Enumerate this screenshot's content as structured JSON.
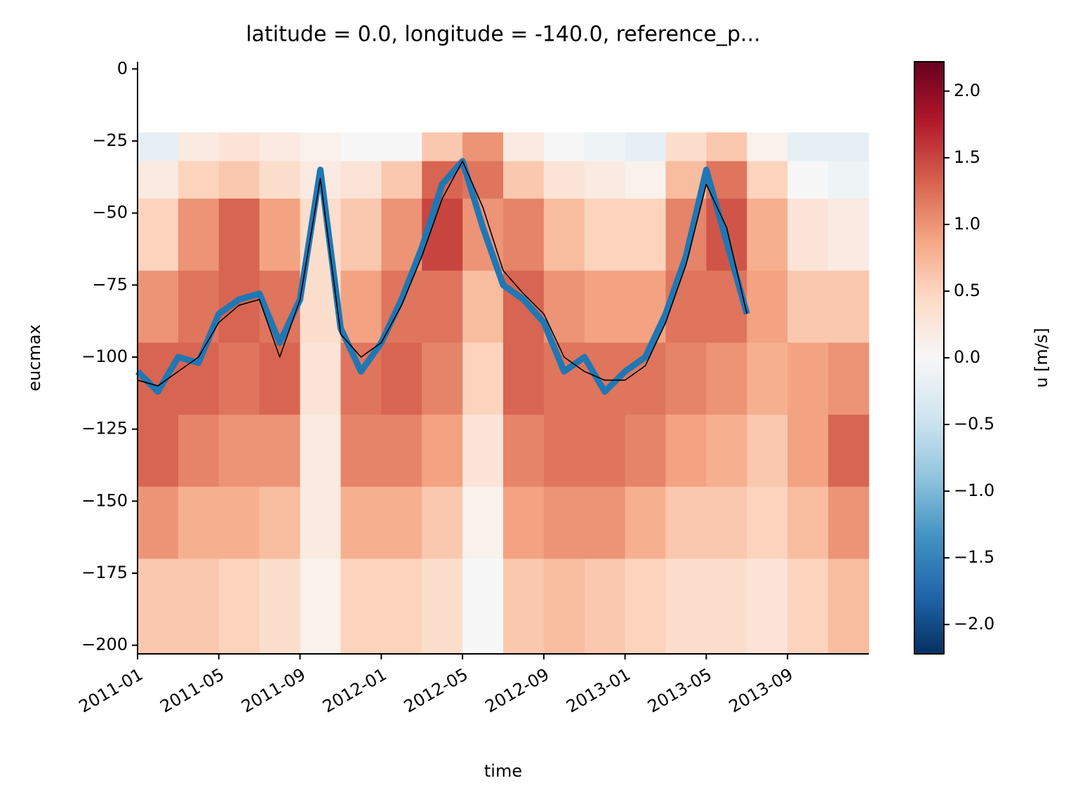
{
  "chart_data": {
    "type": "heatmap",
    "title": "latitude = 0.0, longitude = -140.0, reference_p...",
    "xlabel": "time",
    "ylabel": "eucmax",
    "colorbar_label": "u [m/s]",
    "xlim": [
      "2011-01",
      "2014-01"
    ],
    "xticks": [
      "2011-01",
      "2011-05",
      "2011-09",
      "2012-01",
      "2012-05",
      "2012-09",
      "2013-01",
      "2013-05",
      "2013-09"
    ],
    "ylim": [
      -203,
      2.5
    ],
    "yticks": [
      0,
      {
        "value": -25,
        "label": "−25"
      },
      {
        "value": -50,
        "label": "−50"
      },
      {
        "value": -75,
        "label": "−75"
      },
      {
        "value": -100,
        "label": "−100"
      },
      {
        "value": -125,
        "label": "−125"
      },
      {
        "value": -150,
        "label": "−150"
      },
      {
        "value": -175,
        "label": "−175"
      },
      {
        "value": -200,
        "label": "−200"
      }
    ],
    "clim": [
      -2.22,
      2.22
    ],
    "cticks": [
      {
        "value": -2.0,
        "label": "−2.0"
      },
      {
        "value": -1.5,
        "label": "−1.5"
      },
      {
        "value": -1.0,
        "label": "−1.0"
      },
      {
        "value": -0.5,
        "label": "−0.5"
      },
      {
        "value": 0.0,
        "label": "0.0"
      },
      {
        "value": 0.5,
        "label": "0.5"
      },
      {
        "value": 1.0,
        "label": "1.0"
      },
      {
        "value": 1.5,
        "label": "1.5"
      },
      {
        "value": 2.0,
        "label": "2.0"
      }
    ],
    "colormap": [
      "#053061",
      "#2166ac",
      "#4393c3",
      "#92c5de",
      "#d1e5f0",
      "#f7f7f7",
      "#fddbc7",
      "#f4a582",
      "#d6604d",
      "#b2182b",
      "#67001f"
    ],
    "heatmap": {
      "x_edges": [
        "2011-01",
        "2011-03",
        "2011-05",
        "2011-07",
        "2011-09",
        "2011-11",
        "2012-01",
        "2012-03",
        "2012-05",
        "2012-07",
        "2012-09",
        "2012-11",
        "2013-01",
        "2013-03",
        "2013-05",
        "2013-07",
        "2013-09",
        "2013-11",
        "2014-01"
      ],
      "y_edges": [
        -22,
        -32,
        -45,
        -70,
        -95,
        -120,
        -145,
        -170,
        -203
      ],
      "values": [
        [
          -0.2,
          0.2,
          0.3,
          0.2,
          0.1,
          0,
          0,
          0.6,
          1.0,
          0.2,
          0,
          -0.1,
          -0.2,
          0.4,
          0.6,
          0.1,
          -0.2,
          -0.2
        ],
        [
          0.2,
          0.5,
          0.6,
          0.4,
          0.2,
          0.3,
          0.6,
          1.3,
          1.2,
          0.6,
          0.3,
          0.2,
          0.1,
          0.7,
          1.2,
          0.5,
          0.0,
          -0.1
        ],
        [
          0.5,
          1.0,
          1.3,
          0.9,
          0.4,
          0.6,
          1.0,
          1.5,
          1.0,
          1.1,
          0.7,
          0.5,
          0.5,
          1.1,
          1.4,
          0.8,
          0.3,
          0.2
        ],
        [
          1.0,
          1.2,
          1.3,
          1.2,
          0.4,
          0.9,
          1.2,
          1.2,
          0.7,
          1.3,
          1.0,
          0.9,
          0.9,
          1.2,
          1.2,
          0.9,
          0.6,
          0.6
        ],
        [
          1.3,
          1.3,
          1.2,
          1.3,
          0.3,
          1.2,
          1.3,
          1.1,
          0.5,
          1.3,
          1.2,
          1.2,
          1.2,
          1.1,
          1.0,
          0.8,
          0.9,
          1.0
        ],
        [
          1.3,
          1.1,
          1.0,
          1.0,
          0.2,
          1.1,
          1.1,
          0.9,
          0.3,
          1.1,
          1.2,
          1.2,
          1.1,
          0.9,
          0.8,
          0.6,
          0.9,
          1.3
        ],
        [
          1.0,
          0.8,
          0.8,
          0.7,
          0.2,
          0.8,
          0.8,
          0.6,
          0.1,
          0.9,
          1.0,
          1.0,
          0.8,
          0.6,
          0.6,
          0.5,
          0.7,
          1.0
        ],
        [
          0.6,
          0.6,
          0.5,
          0.4,
          0.1,
          0.5,
          0.5,
          0.4,
          0.0,
          0.6,
          0.7,
          0.6,
          0.5,
          0.4,
          0.4,
          0.3,
          0.5,
          0.7
        ]
      ]
    },
    "x": [
      "2011-01",
      "2011-02",
      "2011-03",
      "2011-04",
      "2011-05",
      "2011-06",
      "2011-07",
      "2011-08",
      "2011-09",
      "2011-10",
      "2011-11",
      "2011-12",
      "2012-01",
      "2012-02",
      "2012-03",
      "2012-04",
      "2012-05",
      "2012-06",
      "2012-07",
      "2012-08",
      "2012-09",
      "2012-10",
      "2012-11",
      "2012-12",
      "2013-01",
      "2013-02",
      "2013-03",
      "2013-04",
      "2013-05",
      "2013-06",
      "2013-07"
    ],
    "series": [
      {
        "color": "#1f77b4",
        "values": [
          -105,
          -112,
          -100,
          -102,
          -85,
          -80,
          -78,
          -95,
          -80,
          -35,
          -90,
          -105,
          -95,
          -80,
          -62,
          -40,
          -32,
          -55,
          -75,
          -80,
          -88,
          -105,
          -100,
          -112,
          -105,
          -100,
          -85,
          -65,
          -35,
          -60,
          -85
        ]
      },
      {
        "color": "#000000",
        "values": [
          -108,
          -110,
          -105,
          -100,
          -88,
          -82,
          -80,
          -100,
          -80,
          -38,
          -92,
          -100,
          -95,
          -82,
          -65,
          -45,
          -32,
          -48,
          -70,
          -78,
          -85,
          -100,
          -105,
          -108,
          -108,
          -103,
          -88,
          -68,
          -40,
          -55,
          -85
        ]
      }
    ]
  }
}
